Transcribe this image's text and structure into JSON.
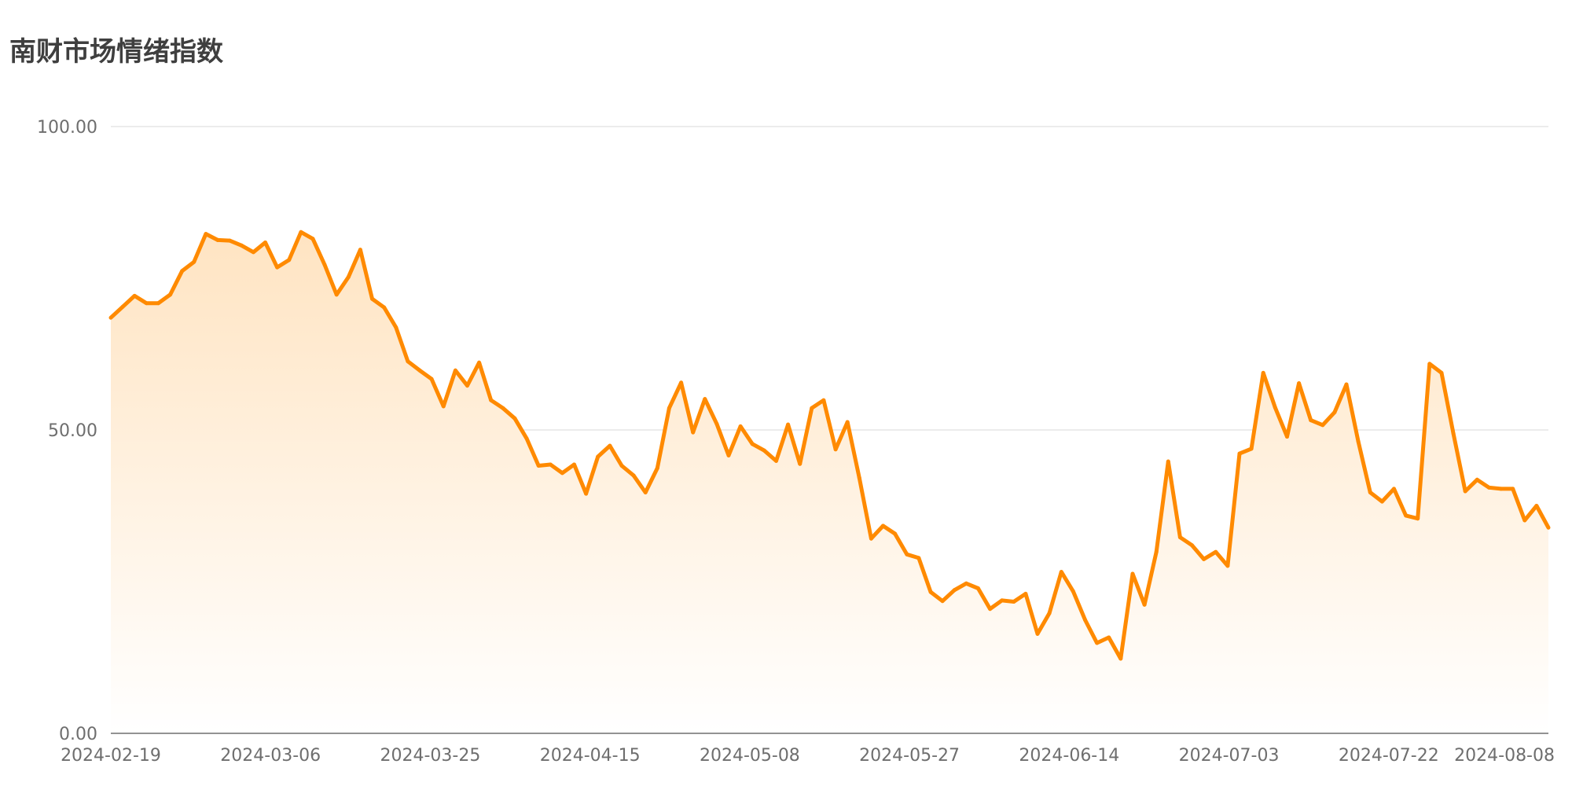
{
  "header": {
    "title": "南财市场情绪指数"
  },
  "colors": {
    "line": "#FF8A00",
    "area_top": "#FFE4C2",
    "area_bottom": "#FFFFFF",
    "grid": "#E0E0E0",
    "axis": "#6E6E6E"
  },
  "chart_data": {
    "type": "area",
    "title": "南财市场情绪指数",
    "xlabel": "",
    "ylabel": "",
    "ylim": [
      0,
      100
    ],
    "y_ticks": [
      "100.00",
      "50.00",
      "0.00"
    ],
    "y_tick_values": [
      100,
      50,
      0
    ],
    "x_tick_labels": [
      "2024-02-19",
      "2024-03-06",
      "2024-03-25",
      "2024-04-15",
      "2024-05-08",
      "2024-05-27",
      "2024-06-14",
      "2024-07-03",
      "2024-07-22",
      "2024-08-08"
    ],
    "grid": true,
    "legend": "none",
    "series": [
      {
        "values": [
          68.5,
          70.3,
          72.1,
          70.9,
          70.9,
          72.3,
          76.2,
          77.7,
          82.3,
          81.3,
          81.2,
          80.4,
          79.3,
          80.9,
          76.8,
          78.0,
          82.6,
          81.5,
          77.2,
          72.3,
          75.2,
          79.7,
          71.6,
          70.2,
          66.9,
          61.3,
          59.8,
          58.4,
          53.9,
          59.8,
          57.3,
          61.1,
          54.9,
          53.6,
          51.9,
          48.6,
          44.1,
          44.3,
          42.9,
          44.3,
          39.5,
          45.6,
          47.4,
          44.1,
          42.5,
          39.7,
          43.7,
          53.6,
          57.8,
          49.6,
          55.1,
          51.0,
          45.8,
          50.6,
          47.7,
          46.6,
          44.9,
          50.9,
          44.4,
          53.6,
          54.9,
          46.8,
          51.3,
          42.1,
          32.1,
          34.2,
          32.9,
          29.5,
          28.9,
          23.3,
          21.8,
          23.6,
          24.7,
          23.9,
          20.5,
          21.9,
          21.7,
          23.0,
          16.4,
          19.8,
          26.6,
          23.4,
          18.7,
          14.9,
          15.8,
          12.3,
          26.3,
          21.2,
          29.9,
          44.8,
          32.3,
          31.0,
          28.7,
          29.9,
          27.6,
          46.1,
          46.9,
          59.4,
          53.7,
          48.9,
          57.7,
          51.6,
          50.8,
          52.9,
          57.5,
          48.1,
          39.7,
          38.2,
          40.3,
          35.9,
          35.4,
          60.9,
          59.4,
          49.4,
          39.9,
          41.8,
          40.5,
          40.3,
          40.3,
          35.1,
          37.5,
          33.9
        ]
      }
    ]
  }
}
